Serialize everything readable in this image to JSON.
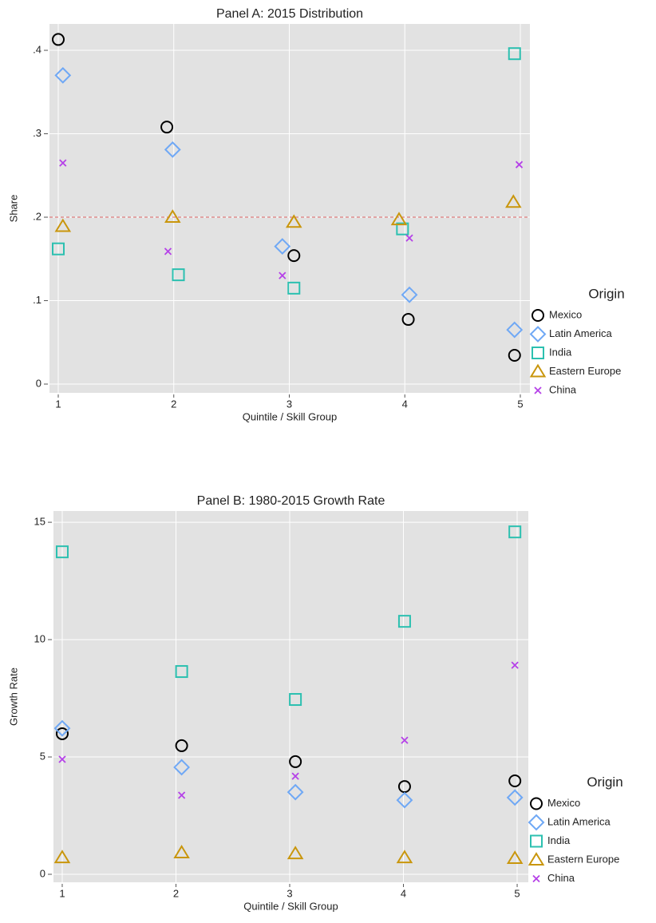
{
  "chart_data": [
    {
      "type": "scatter",
      "title": "Panel A: 2015 Distribution",
      "x_label": "Quintile / Skill Group",
      "y_label": "Share",
      "xlim": [
        0.924,
        5.083
      ],
      "ylim": [
        -0.0105,
        0.4316
      ],
      "xticks": [
        1,
        2,
        3,
        4,
        5
      ],
      "yticks": [
        0,
        {
          "value": 0.1,
          "label": ".1"
        },
        {
          "value": 0.2,
          "label": ".2"
        },
        {
          "value": 0.3,
          "label": ".3"
        },
        {
          "value": 0.4,
          "label": ".4"
        }
      ],
      "grid": true,
      "hline": 0.2,
      "hline_color": "#e06666",
      "legend_title": "Origin",
      "series": [
        {
          "name": "Mexico",
          "color": "#000000",
          "marker": "circle",
          "x": [
            1.0,
            1.94,
            3.04,
            4.03,
            4.95
          ],
          "values": [
            0.413,
            0.308,
            0.154,
            0.0775,
            0.0345
          ]
        },
        {
          "name": "Latin America",
          "color": "#6fa8f5",
          "marker": "diamond",
          "x": [
            1.04,
            1.99,
            2.94,
            4.04,
            4.95
          ],
          "values": [
            0.37,
            0.281,
            0.165,
            0.107,
            0.065
          ]
        },
        {
          "name": "India",
          "color": "#2cc0b0",
          "marker": "square",
          "x": [
            1.0,
            2.04,
            3.04,
            3.98,
            4.95
          ],
          "values": [
            0.162,
            0.131,
            0.115,
            0.186,
            0.396
          ]
        },
        {
          "name": "Eastern Europe",
          "color": "#c9960c",
          "marker": "triangle",
          "x": [
            1.04,
            1.99,
            3.04,
            3.95,
            4.94
          ],
          "values": [
            0.189,
            0.2,
            0.194,
            0.197,
            0.218
          ]
        },
        {
          "name": "China",
          "color": "#b541e8",
          "marker": "x",
          "x": [
            1.04,
            1.95,
            2.94,
            4.04,
            4.99
          ],
          "values": [
            0.265,
            0.159,
            0.13,
            0.175,
            0.263
          ]
        }
      ]
    },
    {
      "type": "scatter",
      "title": "Panel B: 1980-2015 Growth Rate",
      "x_label": "Quintile / Skill Group",
      "y_label": "Growth Rate",
      "xlim": [
        0.923,
        5.098
      ],
      "ylim": [
        -0.34,
        15.48
      ],
      "xticks": [
        1,
        2,
        3,
        4,
        5
      ],
      "yticks": [
        0,
        5,
        10,
        15
      ],
      "grid": true,
      "legend_title": "Origin",
      "series": [
        {
          "name": "Mexico",
          "color": "#000000",
          "marker": "circle",
          "x": [
            1.0,
            2.05,
            3.05,
            4.01,
            4.98
          ],
          "values": [
            5.99,
            5.48,
            4.8,
            3.74,
            3.98
          ]
        },
        {
          "name": "Latin America",
          "color": "#6fa8f5",
          "marker": "diamond",
          "x": [
            1.0,
            2.05,
            3.05,
            4.01,
            4.98
          ],
          "values": [
            6.22,
            4.56,
            3.5,
            3.16,
            3.27
          ]
        },
        {
          "name": "India",
          "color": "#2cc0b0",
          "marker": "square",
          "x": [
            1.0,
            2.05,
            3.05,
            4.01,
            4.98
          ],
          "values": [
            13.74,
            8.64,
            7.45,
            10.78,
            14.59
          ]
        },
        {
          "name": "Eastern Europe",
          "color": "#c9960c",
          "marker": "triangle",
          "x": [
            1.0,
            2.05,
            3.05,
            4.01,
            4.98
          ],
          "values": [
            0.71,
            0.92,
            0.88,
            0.71,
            0.68
          ]
        },
        {
          "name": "China",
          "color": "#b541e8",
          "marker": "x",
          "x": [
            1.0,
            2.05,
            3.05,
            4.01,
            4.98
          ],
          "values": [
            4.9,
            3.37,
            4.18,
            5.71,
            8.91
          ]
        }
      ]
    }
  ]
}
